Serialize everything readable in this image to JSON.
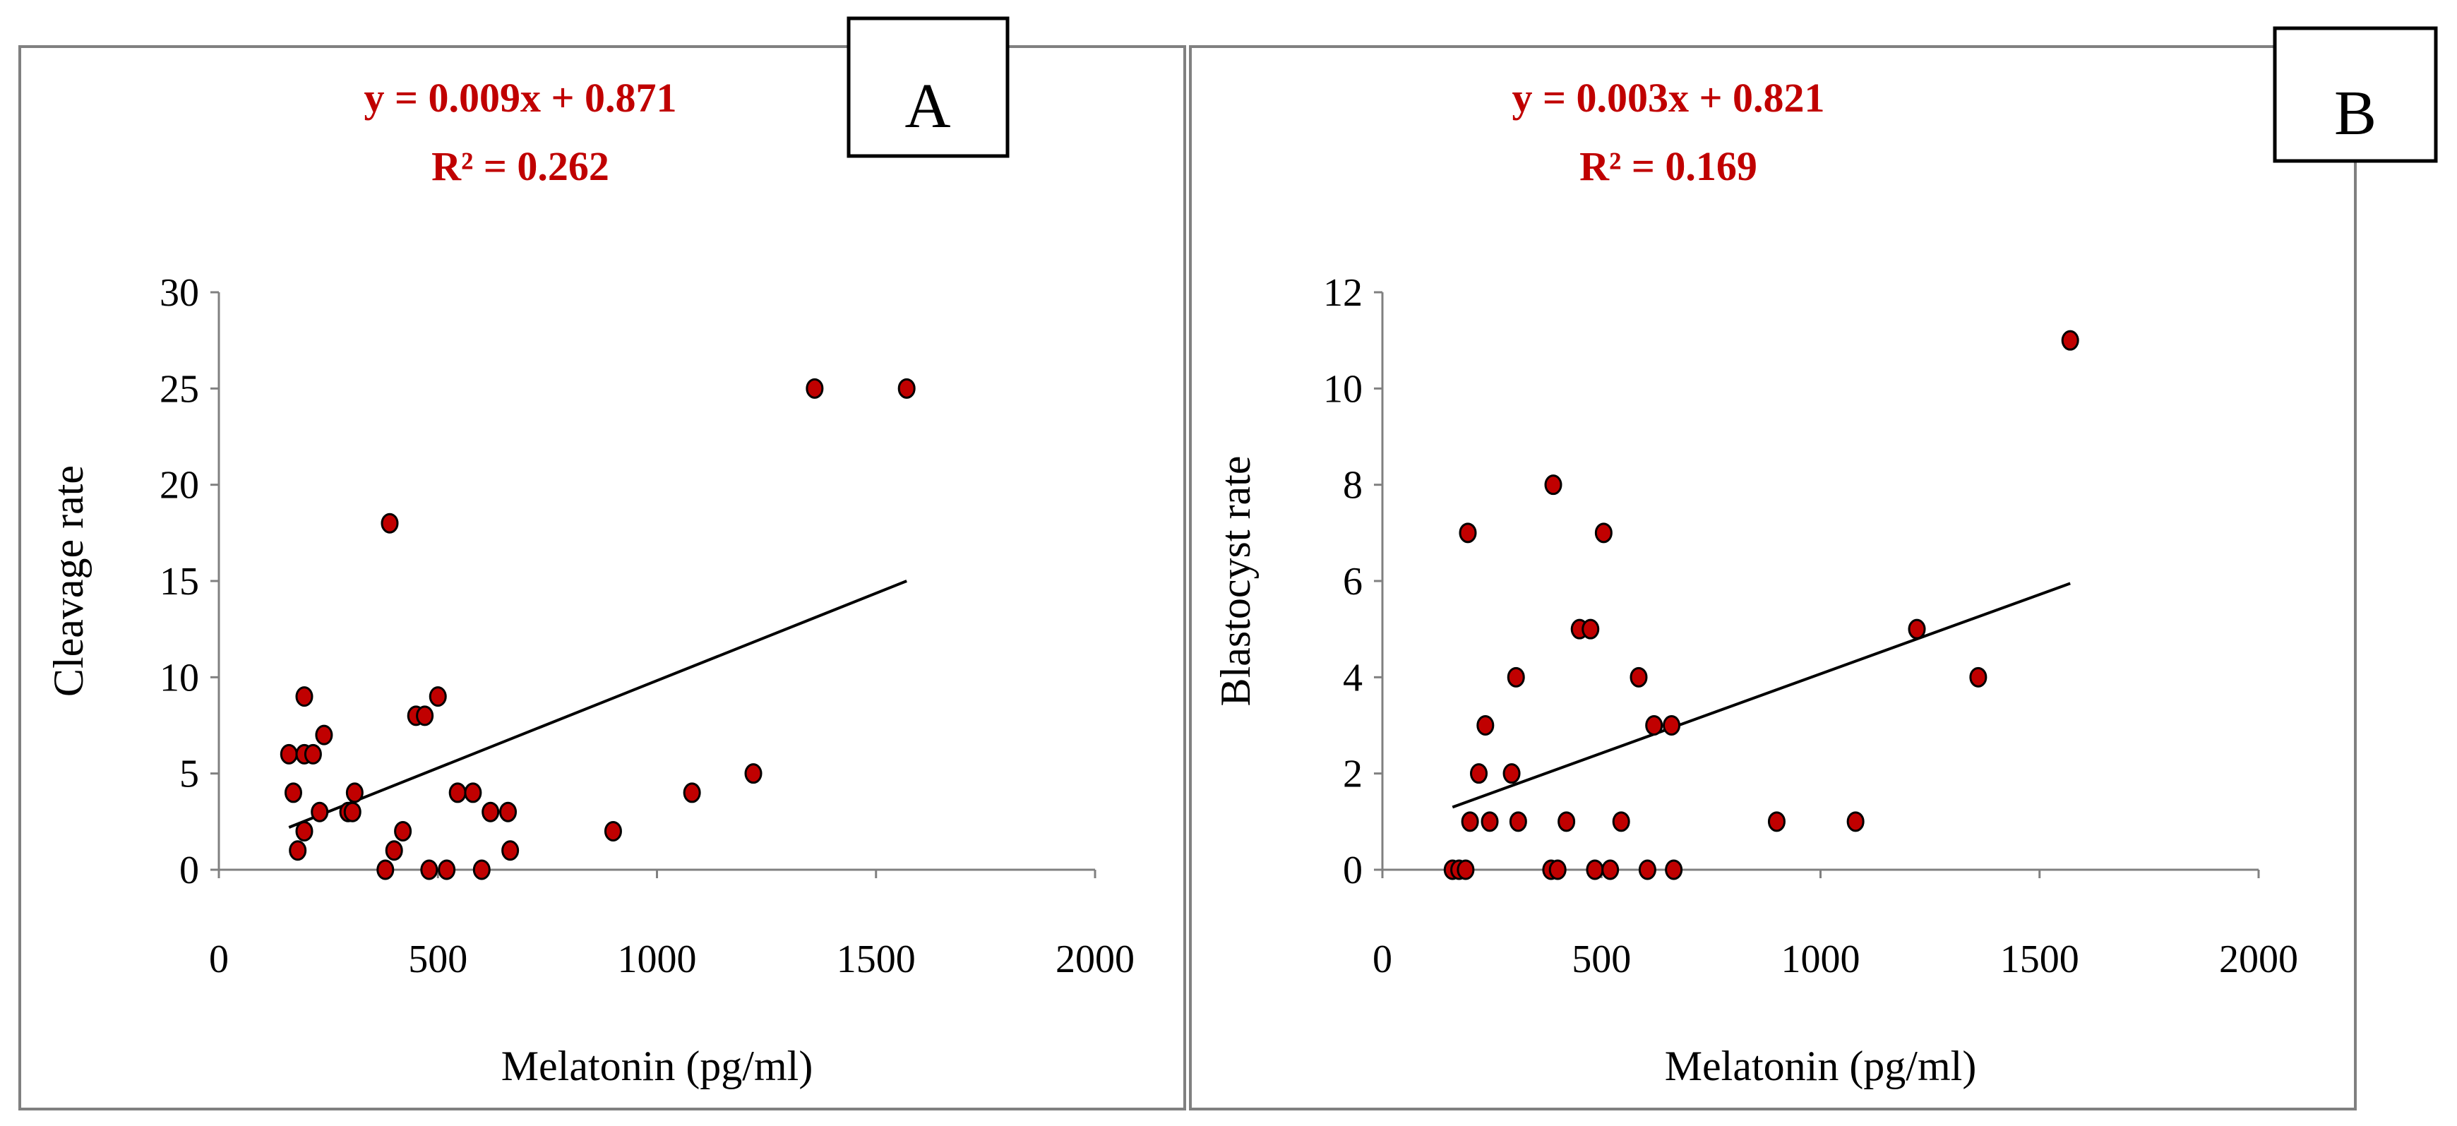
{
  "chart_data": [
    {
      "type": "scatter",
      "panel_label": "A",
      "equation": "y = 0.009x + 0.871",
      "r_squared": "R² = 0.262",
      "xlabel": "Melatonin (pg/ml)",
      "ylabel": "Cleavage rate",
      "xlim": [
        0,
        2000
      ],
      "ylim": [
        0,
        30
      ],
      "x_ticks": [
        0,
        500,
        1000,
        1500,
        2000
      ],
      "y_ticks": [
        0,
        5,
        10,
        15,
        20,
        25,
        30
      ],
      "trendline": {
        "x": [
          160,
          1570
        ],
        "y": [
          2.2,
          15.0
        ]
      },
      "marker_color": "#c00000",
      "points": [
        {
          "x": 160,
          "y": 6
        },
        {
          "x": 170,
          "y": 4
        },
        {
          "x": 180,
          "y": 1
        },
        {
          "x": 195,
          "y": 9
        },
        {
          "x": 195,
          "y": 6
        },
        {
          "x": 195,
          "y": 2
        },
        {
          "x": 215,
          "y": 6
        },
        {
          "x": 230,
          "y": 3
        },
        {
          "x": 240,
          "y": 7
        },
        {
          "x": 295,
          "y": 3
        },
        {
          "x": 305,
          "y": 3
        },
        {
          "x": 310,
          "y": 4
        },
        {
          "x": 380,
          "y": 0
        },
        {
          "x": 390,
          "y": 18
        },
        {
          "x": 400,
          "y": 1
        },
        {
          "x": 420,
          "y": 2
        },
        {
          "x": 450,
          "y": 8
        },
        {
          "x": 470,
          "y": 8
        },
        {
          "x": 480,
          "y": 0
        },
        {
          "x": 500,
          "y": 9
        },
        {
          "x": 520,
          "y": 0
        },
        {
          "x": 545,
          "y": 4
        },
        {
          "x": 580,
          "y": 4
        },
        {
          "x": 600,
          "y": 0
        },
        {
          "x": 620,
          "y": 3
        },
        {
          "x": 660,
          "y": 3
        },
        {
          "x": 665,
          "y": 1
        },
        {
          "x": 900,
          "y": 2
        },
        {
          "x": 1080,
          "y": 4
        },
        {
          "x": 1220,
          "y": 5
        },
        {
          "x": 1360,
          "y": 25
        },
        {
          "x": 1570,
          "y": 25
        }
      ]
    },
    {
      "type": "scatter",
      "panel_label": "B",
      "equation": "y = 0.003x + 0.821",
      "r_squared": "R² = 0.169",
      "xlabel": "Melatonin (pg/ml)",
      "ylabel": "Blastocyst  rate",
      "xlim": [
        0,
        2000
      ],
      "ylim": [
        0,
        12
      ],
      "x_ticks": [
        0,
        500,
        1000,
        1500,
        2000
      ],
      "y_ticks": [
        0,
        2,
        4,
        6,
        8,
        10,
        12
      ],
      "trendline": {
        "x": [
          160,
          1570
        ],
        "y": [
          1.3,
          5.95
        ]
      },
      "marker_color": "#c00000",
      "points": [
        {
          "x": 160,
          "y": 0
        },
        {
          "x": 175,
          "y": 0
        },
        {
          "x": 190,
          "y": 0
        },
        {
          "x": 195,
          "y": 7
        },
        {
          "x": 200,
          "y": 1
        },
        {
          "x": 220,
          "y": 2
        },
        {
          "x": 235,
          "y": 3
        },
        {
          "x": 245,
          "y": 1
        },
        {
          "x": 295,
          "y": 2
        },
        {
          "x": 305,
          "y": 4
        },
        {
          "x": 310,
          "y": 1
        },
        {
          "x": 385,
          "y": 0
        },
        {
          "x": 390,
          "y": 8
        },
        {
          "x": 400,
          "y": 0
        },
        {
          "x": 420,
          "y": 1
        },
        {
          "x": 450,
          "y": 5
        },
        {
          "x": 475,
          "y": 5
        },
        {
          "x": 485,
          "y": 0
        },
        {
          "x": 505,
          "y": 7
        },
        {
          "x": 520,
          "y": 0
        },
        {
          "x": 545,
          "y": 1
        },
        {
          "x": 585,
          "y": 4
        },
        {
          "x": 605,
          "y": 0
        },
        {
          "x": 620,
          "y": 3
        },
        {
          "x": 660,
          "y": 3
        },
        {
          "x": 665,
          "y": 0
        },
        {
          "x": 900,
          "y": 1
        },
        {
          "x": 1080,
          "y": 1
        },
        {
          "x": 1220,
          "y": 5
        },
        {
          "x": 1360,
          "y": 4
        },
        {
          "x": 1570,
          "y": 11
        }
      ]
    }
  ]
}
